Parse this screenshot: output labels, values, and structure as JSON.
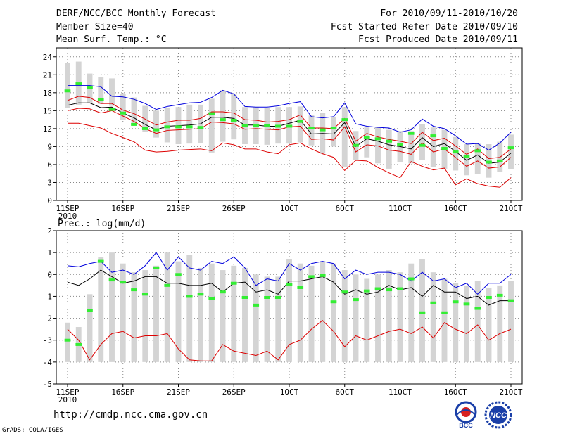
{
  "header": {
    "title": "DERF/NCC/BCC Monthly Forecast",
    "member_size": "Member Size=40",
    "variable": "Mean Surf. Temp.: °C",
    "period": "For 2010/09/11-2010/10/20",
    "started": "Fcst Started Refer Date 2010/09/10",
    "produced": "Fcst Produced Date 2010/09/11"
  },
  "footer": {
    "url": "http://cmdp.ncc.cma.gov.cn",
    "credit": "GrADS: COLA/IGES",
    "logo_left": "BCC",
    "logo_right": "NCC"
  },
  "colors": {
    "box": "#d4d4d4",
    "max": "#0000dd",
    "min": "#dd0000",
    "mean": "#000000",
    "median": "#33ee33",
    "grid": "#888888"
  },
  "chart_data": [
    {
      "type": "box-ensemble",
      "title": "Mean Surf. Temp.: °C",
      "ylim": [
        0,
        25.5
      ],
      "yticks": [
        0,
        3,
        6,
        9,
        12,
        15,
        18,
        21,
        24
      ],
      "xlim": [
        0,
        40
      ],
      "xticks": [
        {
          "pos": 0,
          "label": "11SEP",
          "sub": "2010"
        },
        {
          "pos": 5,
          "label": "16SEP"
        },
        {
          "pos": 10,
          "label": "21SEP"
        },
        {
          "pos": 15,
          "label": "26SEP"
        },
        {
          "pos": 20,
          "label": "1OCT"
        },
        {
          "pos": 25,
          "label": "6OCT"
        },
        {
          "pos": 30,
          "label": "11OCT"
        },
        {
          "pos": 35,
          "label": "16OCT"
        },
        {
          "pos": 40,
          "label": "21OCT"
        }
      ],
      "box_low": [
        15.5,
        16.0,
        16.3,
        16.1,
        15.8,
        13.5,
        12.8,
        11.5,
        10.5,
        9.7,
        9.4,
        9.5,
        9.6,
        8.0,
        9.8,
        10.2,
        9.4,
        9.4,
        9.3,
        9.5,
        9.5,
        9.7,
        9.2,
        7.8,
        9.0,
        5.6,
        6.8,
        7.2,
        6.2,
        5.3,
        6.4,
        6.2,
        6.7,
        5.6,
        5.3,
        5.0,
        4.2,
        4.4,
        3.8,
        4.8,
        5.2
      ],
      "box_high": [
        23.0,
        23.2,
        21.2,
        20.6,
        20.4,
        17.8,
        17.2,
        15.8,
        15.0,
        15.5,
        15.6,
        16.0,
        16.0,
        17.0,
        18.4,
        17.8,
        15.6,
        15.6,
        15.4,
        15.6,
        15.6,
        15.7,
        14.2,
        14.6,
        14.0,
        15.6,
        11.6,
        12.2,
        12.2,
        11.8,
        11.6,
        11.6,
        12.7,
        12.2,
        11.8,
        10.6,
        9.4,
        9.5,
        9.4,
        9.8,
        11.0
      ],
      "max": [
        19.2,
        19.2,
        19.2,
        19.0,
        17.4,
        17.3,
        16.9,
        16.2,
        15.2,
        15.7,
        16.0,
        16.3,
        16.4,
        17.2,
        18.4,
        17.8,
        15.7,
        15.6,
        15.6,
        15.8,
        16.2,
        16.5,
        14.0,
        13.8,
        14.0,
        16.3,
        12.8,
        12.4,
        12.2,
        12.1,
        11.4,
        11.8,
        13.6,
        12.4,
        12.0,
        10.8,
        9.4,
        9.5,
        8.4,
        9.6,
        11.4
      ],
      "min": [
        12.9,
        12.9,
        12.5,
        12.1,
        11.2,
        10.5,
        9.8,
        8.4,
        8.1,
        8.2,
        8.4,
        8.5,
        8.6,
        8.3,
        9.6,
        9.3,
        8.6,
        8.6,
        8.1,
        7.8,
        9.3,
        9.6,
        8.6,
        7.8,
        7.2,
        5.0,
        6.7,
        6.6,
        5.5,
        4.6,
        3.8,
        6.5,
        5.7,
        5.1,
        5.4,
        2.6,
        3.6,
        2.8,
        2.4,
        2.2,
        3.8
      ],
      "upper": [
        16.7,
        17.4,
        17.2,
        16.2,
        16.2,
        15.1,
        14.5,
        13.6,
        12.6,
        13.1,
        13.4,
        13.4,
        13.7,
        14.8,
        14.8,
        14.6,
        13.5,
        13.4,
        13.1,
        13.2,
        13.5,
        14.3,
        12.1,
        12.1,
        12.0,
        13.7,
        9.9,
        11.2,
        10.6,
        10.2,
        9.9,
        9.5,
        11.4,
        10.0,
        10.4,
        9.1,
        7.7,
        8.6,
        7.0,
        7.2,
        8.6
      ],
      "lower": [
        15.0,
        15.4,
        15.3,
        14.6,
        15.0,
        14.1,
        13.2,
        12.0,
        11.2,
        11.7,
        11.8,
        11.9,
        12.0,
        13.1,
        13.0,
        12.8,
        11.9,
        12.0,
        11.9,
        11.8,
        12.3,
        12.4,
        10.2,
        10.3,
        10.1,
        12.3,
        8.1,
        9.3,
        9.1,
        8.4,
        8.2,
        7.7,
        9.6,
        8.1,
        8.6,
        7.2,
        5.7,
        6.6,
        5.4,
        5.6,
        7.2
      ],
      "mean": [
        15.9,
        16.3,
        16.3,
        15.5,
        15.6,
        14.6,
        13.8,
        12.7,
        11.8,
        12.4,
        12.5,
        12.6,
        12.8,
        13.9,
        13.9,
        13.7,
        12.6,
        12.6,
        12.4,
        12.4,
        12.9,
        13.4,
        11.1,
        11.2,
        11.1,
        13.0,
        9.0,
        10.3,
        9.9,
        9.3,
        9.0,
        8.6,
        10.5,
        9.0,
        9.5,
        8.2,
        6.7,
        7.6,
        6.2,
        6.4,
        7.9
      ],
      "median": [
        18.3,
        19.5,
        18.8,
        16.9,
        15.2,
        14.6,
        12.7,
        12.0,
        11.8,
        12.3,
        12.3,
        12.3,
        12.2,
        14.5,
        13.5,
        13.4,
        12.5,
        12.5,
        12.5,
        12.4,
        12.4,
        13.2,
        12.1,
        11.8,
        12.1,
        13.5,
        9.2,
        10.5,
        10.3,
        9.9,
        9.4,
        11.2,
        9.2,
        10.8,
        8.7,
        8.1,
        7.4,
        8.3,
        6.4,
        6.6,
        8.8
      ]
    },
    {
      "type": "box-ensemble",
      "title": "Prec.: log(mm/d)",
      "ylim": [
        -5,
        2
      ],
      "yticks": [
        -5,
        -4,
        -3,
        -2,
        -1,
        0,
        1,
        2
      ],
      "xlim": [
        0,
        40
      ],
      "xticks": [
        {
          "pos": 0,
          "label": "11SEP",
          "sub": "2010"
        },
        {
          "pos": 5,
          "label": "16SEP"
        },
        {
          "pos": 10,
          "label": "21SEP"
        },
        {
          "pos": 15,
          "label": "26SEP"
        },
        {
          "pos": 20,
          "label": "1OCT"
        },
        {
          "pos": 25,
          "label": "6OCT"
        },
        {
          "pos": 30,
          "label": "11OCT"
        },
        {
          "pos": 35,
          "label": "16OCT"
        },
        {
          "pos": 40,
          "label": "21OCT"
        }
      ],
      "box_low": [
        -4,
        -4,
        -4,
        -4,
        -4,
        -4,
        -4,
        -4,
        -4,
        -4,
        -4,
        -4,
        -4,
        -4,
        -4,
        -4,
        -4,
        -4,
        -4,
        -4,
        -4,
        -4,
        -4,
        -4,
        -4,
        -4,
        -4,
        -4,
        -4,
        -4,
        -4,
        -4,
        -4,
        -4,
        -4,
        -4,
        -4,
        -4,
        -4,
        -4,
        -4
      ],
      "box_high": [
        -2.2,
        -2.4,
        -0.9,
        0.8,
        1.0,
        0.5,
        0.1,
        0.2,
        0.4,
        1.0,
        0.6,
        0.9,
        0.3,
        0.5,
        0.2,
        0.4,
        0.3,
        0.0,
        -0.1,
        -0.1,
        0.7,
        0.5,
        0.4,
        0.6,
        0.5,
        0.2,
        0.0,
        -0.2,
        0.0,
        0.2,
        0.1,
        0.5,
        0.7,
        0.1,
        -0.2,
        -0.4,
        -0.5,
        -0.3,
        -0.6,
        -0.5,
        -0.3
      ],
      "max": [
        0.4,
        0.35,
        0.5,
        0.6,
        0.1,
        0.2,
        0.0,
        0.4,
        1.0,
        0.2,
        0.8,
        0.3,
        0.2,
        0.6,
        0.5,
        0.8,
        0.3,
        -0.5,
        -0.2,
        -0.3,
        0.5,
        0.2,
        0.5,
        0.6,
        0.5,
        -0.2,
        0.2,
        0.0,
        0.1,
        0.1,
        0.0,
        -0.3,
        0.1,
        -0.3,
        -0.2,
        -0.6,
        -0.4,
        -0.9,
        -0.4,
        -0.4,
        0.0
      ],
      "min": [
        -2.5,
        -3.0,
        -3.9,
        -3.2,
        -2.7,
        -2.6,
        -2.9,
        -2.8,
        -2.8,
        -2.7,
        -3.4,
        -3.9,
        -3.95,
        -3.95,
        -3.2,
        -3.5,
        -3.6,
        -3.7,
        -3.5,
        -3.9,
        -3.2,
        -3.0,
        -2.5,
        -2.1,
        -2.6,
        -3.3,
        -2.8,
        -3.0,
        -2.8,
        -2.6,
        -2.5,
        -2.7,
        -2.4,
        -2.9,
        -2.2,
        -2.5,
        -2.7,
        -2.3,
        -3.0,
        -2.7,
        -2.5
      ],
      "mean": [
        -0.35,
        -0.5,
        -0.2,
        0.2,
        -0.1,
        -0.4,
        -0.3,
        -0.1,
        -0.1,
        -0.4,
        -0.4,
        -0.5,
        -0.5,
        -0.4,
        -0.8,
        -0.4,
        -0.35,
        -0.8,
        -0.7,
        -0.9,
        -0.3,
        -0.3,
        -0.2,
        -0.1,
        -0.35,
        -0.9,
        -0.7,
        -0.9,
        -0.8,
        -0.5,
        -0.7,
        -0.6,
        -1.0,
        -0.5,
        -0.8,
        -0.8,
        -1.1,
        -1.0,
        -1.4,
        -1.2,
        -1.2
      ],
      "median": [
        -3.0,
        -3.2,
        -1.65,
        0.6,
        -0.25,
        -0.35,
        -0.7,
        -0.9,
        0.3,
        -0.5,
        0.0,
        -1.0,
        -0.9,
        -1.1,
        -0.8,
        -0.4,
        -1.05,
        -1.4,
        -1.05,
        -1.05,
        -0.45,
        -0.6,
        -0.1,
        -0.05,
        -1.25,
        -0.8,
        -1.15,
        -0.75,
        -0.65,
        -0.7,
        -0.65,
        -0.2,
        -1.75,
        -1.3,
        -1.75,
        -1.25,
        -1.35,
        -1.55,
        -1.05,
        -0.95,
        -1.2
      ]
    }
  ]
}
